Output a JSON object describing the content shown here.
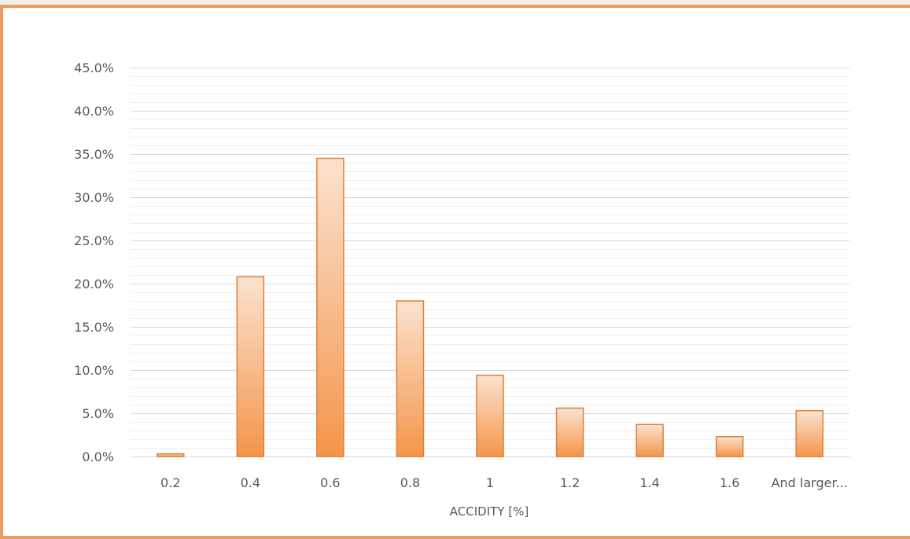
{
  "chart_data": {
    "type": "bar",
    "categories": [
      "0.2",
      "0.4",
      "0.6",
      "0.8",
      "1",
      "1.2",
      "1.4",
      "1.6",
      "And larger..."
    ],
    "values": [
      0.3,
      20.8,
      34.5,
      18.0,
      9.4,
      5.6,
      3.7,
      2.3,
      5.3
    ],
    "title": "",
    "xlabel": "ACCIDITY [%]",
    "ylabel": "",
    "ylim": [
      0,
      45
    ],
    "yticks": [
      "0.0%",
      "5.0%",
      "10.0%",
      "15.0%",
      "20.0%",
      "25.0%",
      "30.0%",
      "35.0%",
      "40.0%",
      "45.0%"
    ],
    "grid": "on",
    "legend": "none",
    "colors": {
      "bar_top": "#fbe3d0",
      "bar_bottom": "#f4954a",
      "bar_border": "#e47f2f",
      "frame": "#eb9b5e",
      "grid_major": "#d9d9d9",
      "grid_minor": "#efefef"
    }
  }
}
